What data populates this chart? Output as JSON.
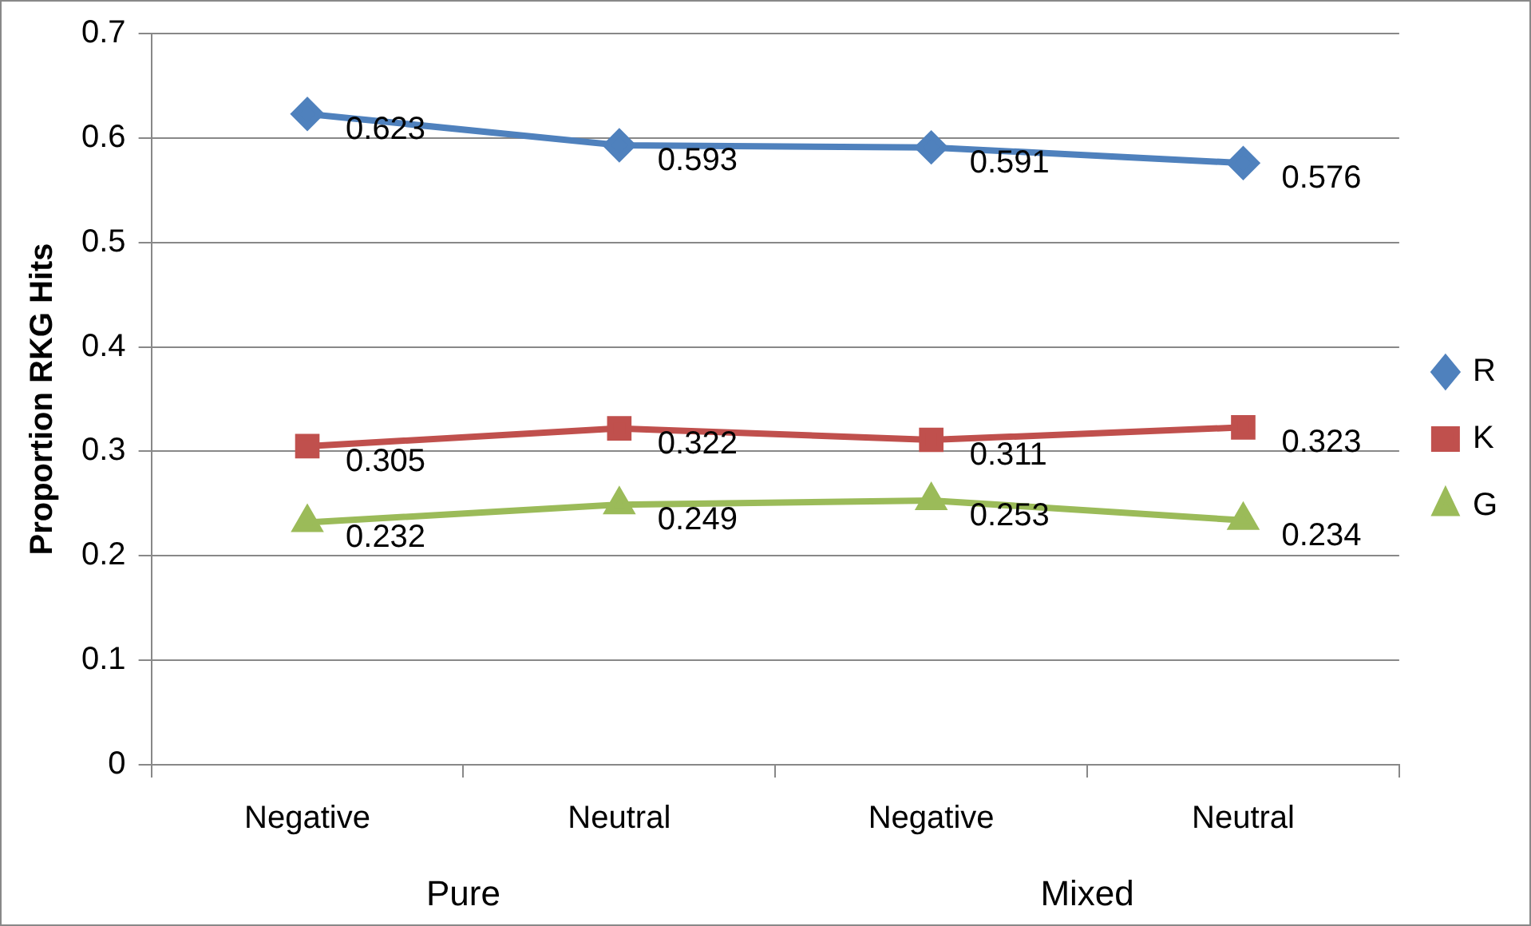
{
  "chart_data": {
    "type": "line",
    "ylabel": "Proportion RKG Hits",
    "categories": [
      "Negative",
      "Neutral",
      "Negative",
      "Neutral"
    ],
    "annotations": [
      "Pure",
      "Mixed"
    ],
    "series": [
      {
        "name": "R",
        "color": "#4f81bd",
        "marker": "diamond",
        "values": [
          0.623,
          0.593,
          0.591,
          0.576
        ]
      },
      {
        "name": "K",
        "color": "#c0504d",
        "marker": "square",
        "values": [
          0.305,
          0.322,
          0.311,
          0.323
        ]
      },
      {
        "name": "G",
        "color": "#9bbb59",
        "marker": "triangle",
        "values": [
          0.232,
          0.249,
          0.253,
          0.234
        ]
      }
    ],
    "ylim": [
      0,
      0.7
    ],
    "yticks": [
      0,
      0.1,
      0.2,
      0.3,
      0.4,
      0.5,
      0.6,
      0.7
    ],
    "grid": "y",
    "legend": "right",
    "data_labels": true
  }
}
